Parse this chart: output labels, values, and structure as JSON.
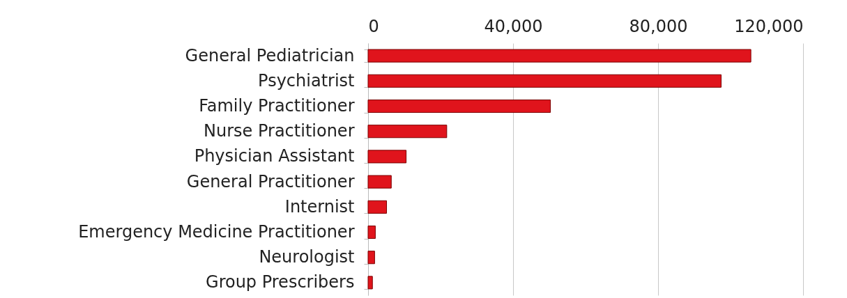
{
  "chart_data": {
    "type": "bar",
    "orientation": "horizontal",
    "categories": [
      "General Pediatrician",
      "Psychiatrist",
      "Family Practitioner",
      "Nurse Practitioner",
      "Physician Assistant",
      "General Practitioner",
      "Internist",
      "Emergency Medicine Practitioner",
      "Neurologist",
      "Group Prescribers"
    ],
    "values": [
      105600,
      97400,
      50300,
      21700,
      10500,
      6400,
      5100,
      2000,
      1800,
      1200
    ],
    "color": "#e0141c",
    "xlim": [
      0,
      120000
    ],
    "xticks": [
      {
        "value": 0,
        "label": "0"
      },
      {
        "value": 40000,
        "label": "40,000"
      },
      {
        "value": 80000,
        "label": "80,000"
      },
      {
        "value": 120000,
        "label": "120,000"
      }
    ],
    "grid": "x"
  }
}
